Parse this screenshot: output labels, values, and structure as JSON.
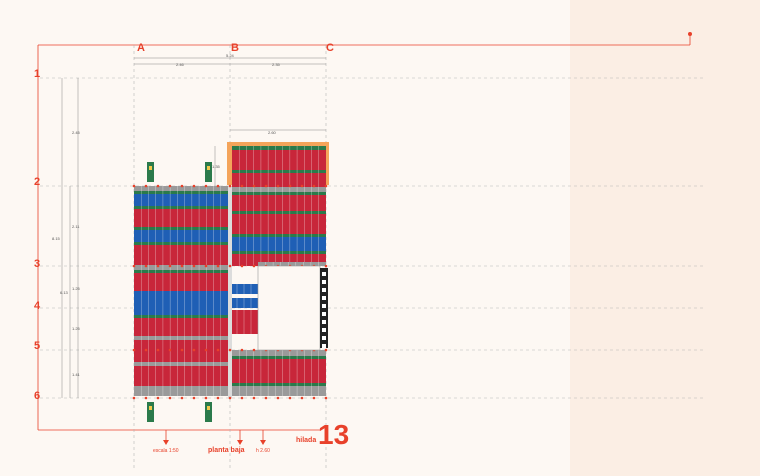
{
  "sheet": {
    "background": "#fdf8f3",
    "accent": "#e8412a",
    "highlight": "#f4a45a"
  },
  "columns": [
    "A",
    "B",
    "C"
  ],
  "rows": [
    "1",
    "2",
    "3",
    "4",
    "5",
    "6"
  ],
  "dimensions": {
    "top_total": "5.24",
    "top_left": "2.46",
    "top_right": "2.35",
    "right_block": "2.60",
    "left_1_2": "2.45",
    "left_2_3": "2.11",
    "left_3_4": "1.25",
    "left_4_5": "1.25",
    "left_5_6": "1.41",
    "left_inner_total": "6.13",
    "left_outer_total": "8.15",
    "small_b": "1.35"
  },
  "legend": {
    "scale": "escala 1:50",
    "plan": "planta baja",
    "height": "h 2.60",
    "row_word": "hilada",
    "row_number": "13"
  },
  "brick_colors": {
    "red": "#c8263a",
    "blue": "#1f5fb5",
    "green": "#2b7a4b",
    "gray": "#9a9a9a"
  }
}
